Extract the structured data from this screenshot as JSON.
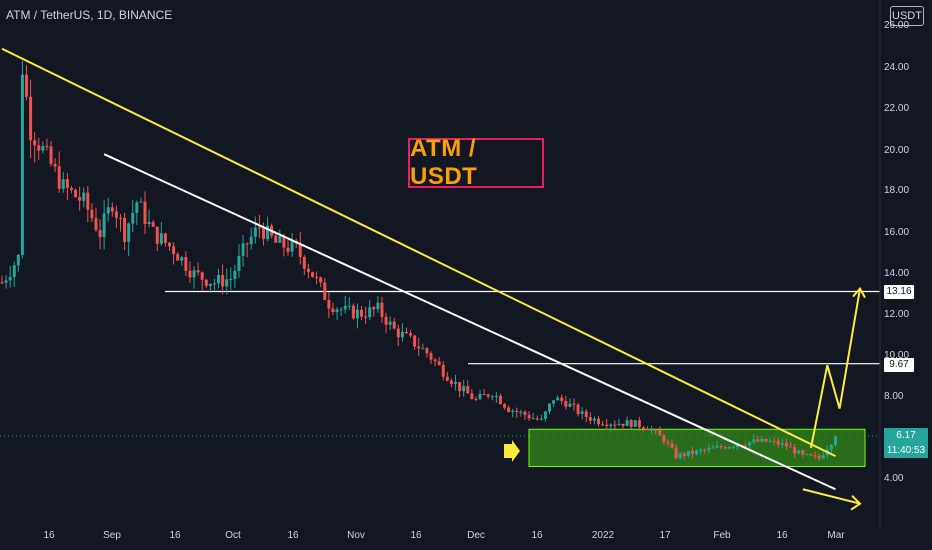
{
  "header": {
    "symbol_text": "ATM / TetherUS, 1D, BINANCE",
    "currency_button": "USDT"
  },
  "annotation": {
    "title_box": "ATM / USDT"
  },
  "colors": {
    "background": "#131722",
    "up": "#26a69a",
    "down": "#ef5350",
    "trendline_yellow": "#ffeb3b",
    "trendline_white": "#ffffff",
    "zone_fill": "#2e7d1a",
    "zone_border": "#76ff03",
    "title_border": "#e91e63",
    "title_text": "#ffa000"
  },
  "chart_data": {
    "type": "candlestick",
    "y_ticks": [
      "26.00",
      "24.00",
      "22.00",
      "20.00",
      "18.00",
      "16.00",
      "14.00",
      "12.00",
      "10.00",
      "8.00",
      "4.00"
    ],
    "x_ticks": [
      "16",
      "Sep",
      "16",
      "Oct",
      "16",
      "Nov",
      "16",
      "Dec",
      "16",
      "2022",
      "17",
      "Feb",
      "16",
      "Mar"
    ],
    "ylim": [
      2.5,
      26.5
    ],
    "levels": [
      {
        "value": 13.16,
        "label": "13.16"
      },
      {
        "value": 9.67,
        "label": "9.67"
      }
    ],
    "last_price": {
      "value": 6.17,
      "label": "6.17",
      "countdown": "11:40:53"
    },
    "support_zone": {
      "low": 4.7,
      "high": 6.5
    },
    "trendlines": [
      {
        "name": "yellow",
        "from": {
          "day": 0,
          "price": 24.9
        },
        "to": {
          "day": 204,
          "price": 5.2
        }
      },
      {
        "name": "white",
        "from": {
          "day": 25,
          "price": 19.8
        },
        "to": {
          "day": 204,
          "price": 3.6
        }
      }
    ],
    "projection_path": [
      {
        "day": 198,
        "price": 5.6
      },
      {
        "day": 202,
        "price": 9.6
      },
      {
        "day": 205,
        "price": 7.5
      },
      {
        "day": 210,
        "price": 13.3
      }
    ],
    "projection_down": [
      {
        "day": 196,
        "price": 3.6
      },
      {
        "day": 210,
        "price": 2.9
      }
    ],
    "closes_path": [
      [
        0,
        13.6
      ],
      [
        4,
        14.8
      ],
      [
        5,
        24.0
      ],
      [
        7,
        21.0
      ],
      [
        10,
        20.0
      ],
      [
        15,
        18.2
      ],
      [
        20,
        17.5
      ],
      [
        24,
        16.0
      ],
      [
        27,
        17.5
      ],
      [
        30,
        16.0
      ],
      [
        33,
        17.5
      ],
      [
        37,
        16.0
      ],
      [
        42,
        15.2
      ],
      [
        47,
        14.0
      ],
      [
        52,
        13.6
      ],
      [
        56,
        13.8
      ],
      [
        60,
        15.5
      ],
      [
        63,
        16.3
      ],
      [
        67,
        15.5
      ],
      [
        72,
        15.2
      ],
      [
        76,
        14.0
      ],
      [
        80,
        12.6
      ],
      [
        84,
        12.2
      ],
      [
        88,
        12.1
      ],
      [
        92,
        12.3
      ],
      [
        96,
        11.3
      ],
      [
        100,
        10.8
      ],
      [
        104,
        10.2
      ],
      [
        108,
        9.3
      ],
      [
        112,
        8.5
      ],
      [
        116,
        7.9
      ],
      [
        120,
        8.3
      ],
      [
        124,
        7.5
      ],
      [
        128,
        7.2
      ],
      [
        132,
        6.9
      ],
      [
        135,
        8.0
      ],
      [
        138,
        7.8
      ],
      [
        142,
        7.2
      ],
      [
        146,
        6.9
      ],
      [
        150,
        6.8
      ],
      [
        154,
        6.8
      ],
      [
        158,
        6.6
      ],
      [
        162,
        6.0
      ],
      [
        165,
        5.2
      ],
      [
        170,
        5.4
      ],
      [
        175,
        5.6
      ],
      [
        180,
        5.8
      ],
      [
        184,
        5.9
      ],
      [
        188,
        5.9
      ],
      [
        192,
        5.7
      ],
      [
        196,
        5.2
      ],
      [
        200,
        5.1
      ],
      [
        204,
        6.17
      ]
    ],
    "days_total": 210
  }
}
